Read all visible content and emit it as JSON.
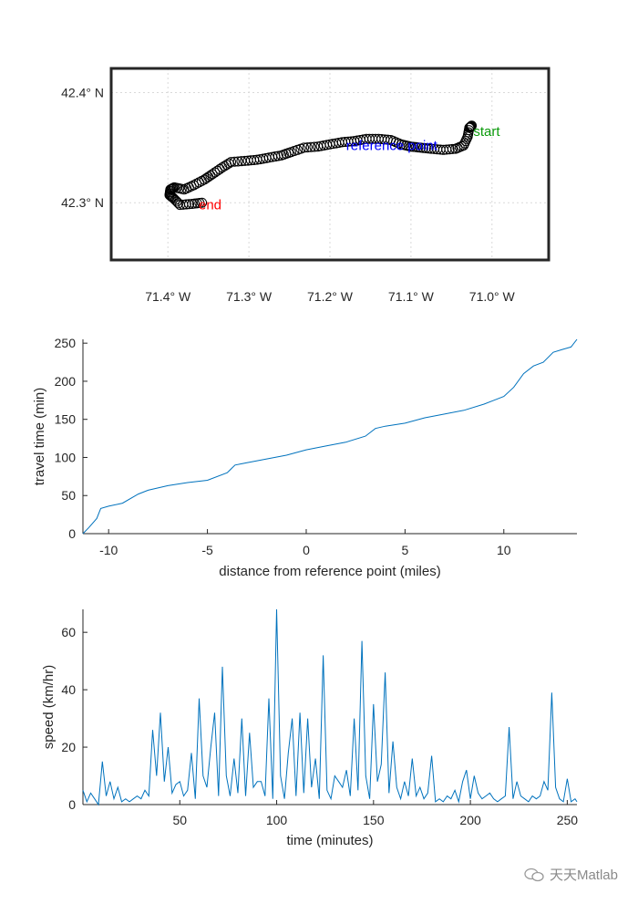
{
  "chart_data": [
    {
      "type": "scatter",
      "map": {
        "lon_ticks": [
          "71.4° W",
          "71.3° W",
          "71.2° W",
          "71.1° W",
          "71.0° W"
        ],
        "lon_tick_values": [
          -71.4,
          -71.3,
          -71.2,
          -71.1,
          -71.0
        ],
        "lat_ticks": [
          "42.4° N",
          "42.3° N"
        ],
        "lat_tick_values": [
          42.4,
          42.3
        ],
        "xlim": [
          -71.47,
          -70.93
        ],
        "ylim": [
          42.248,
          42.422
        ],
        "grid": true
      },
      "route": [
        [
          -71.358,
          42.3
        ],
        [
          -71.37,
          42.299
        ],
        [
          -71.385,
          42.298
        ],
        [
          -71.393,
          42.304
        ],
        [
          -71.398,
          42.307
        ],
        [
          -71.397,
          42.312
        ],
        [
          -71.392,
          42.314
        ],
        [
          -71.38,
          42.312
        ],
        [
          -71.368,
          42.316
        ],
        [
          -71.355,
          42.321
        ],
        [
          -71.345,
          42.326
        ],
        [
          -71.333,
          42.332
        ],
        [
          -71.322,
          42.337
        ],
        [
          -71.305,
          42.338
        ],
        [
          -71.29,
          42.339
        ],
        [
          -71.275,
          42.341
        ],
        [
          -71.26,
          42.343
        ],
        [
          -71.248,
          42.346
        ],
        [
          -71.232,
          42.35
        ],
        [
          -71.215,
          42.351
        ],
        [
          -71.2,
          42.353
        ],
        [
          -71.185,
          42.355
        ],
        [
          -71.17,
          42.356
        ],
        [
          -71.155,
          42.358
        ],
        [
          -71.14,
          42.358
        ],
        [
          -71.125,
          42.357
        ],
        [
          -71.112,
          42.353
        ],
        [
          -71.1,
          42.351
        ],
        [
          -71.088,
          42.35
        ],
        [
          -71.075,
          42.349
        ],
        [
          -71.06,
          42.348
        ],
        [
          -71.045,
          42.349
        ],
        [
          -71.035,
          42.352
        ],
        [
          -71.03,
          42.36
        ],
        [
          -71.028,
          42.368
        ],
        [
          -71.025,
          42.37
        ]
      ],
      "annotations": [
        {
          "text": "start",
          "lon": -71.023,
          "lat": 42.365,
          "color": "#0a9a0a"
        },
        {
          "text": "reference point",
          "lon": -71.18,
          "lat": 42.352,
          "color": "#0000ff"
        },
        {
          "text": "end",
          "lon": -71.362,
          "lat": 42.298,
          "color": "#ff0000"
        }
      ]
    },
    {
      "type": "line",
      "xlabel": "distance from reference point (miles)",
      "ylabel": "travel time (min)",
      "xlim": [
        -11.3,
        13.7
      ],
      "ylim": [
        0,
        255
      ],
      "xticks": [
        -10,
        -5,
        0,
        5,
        10
      ],
      "yticks": [
        0,
        50,
        100,
        150,
        200,
        250
      ],
      "x": [
        -11.3,
        -11.0,
        -10.6,
        -10.4,
        -10.0,
        -9.3,
        -8.5,
        -8.0,
        -7.0,
        -6.0,
        -5.0,
        -4.0,
        -3.6,
        -3.0,
        -2.0,
        -1.0,
        0.0,
        1.0,
        2.0,
        3.0,
        3.5,
        4.0,
        5.0,
        6.0,
        7.0,
        8.0,
        9.0,
        9.5,
        10.0,
        10.5,
        11.0,
        11.5,
        12.0,
        12.5,
        13.0,
        13.4,
        13.7
      ],
      "y": [
        0,
        8,
        20,
        33,
        36,
        40,
        52,
        57,
        63,
        67,
        70,
        80,
        90,
        93,
        98,
        103,
        110,
        115,
        120,
        128,
        138,
        141,
        145,
        152,
        157,
        162,
        170,
        175,
        180,
        192,
        210,
        220,
        225,
        238,
        242,
        245,
        255
      ]
    },
    {
      "type": "line",
      "xlabel": "time (minutes)",
      "ylabel": "speed (km/hr)",
      "xlim": [
        0,
        255
      ],
      "ylim": [
        0,
        68
      ],
      "xticks": [
        50,
        100,
        150,
        200,
        250
      ],
      "yticks": [
        0,
        20,
        40,
        60
      ],
      "x": [
        0,
        2,
        4,
        6,
        8,
        10,
        12,
        14,
        16,
        18,
        20,
        22,
        24,
        26,
        28,
        30,
        32,
        34,
        36,
        38,
        40,
        42,
        44,
        46,
        48,
        50,
        52,
        54,
        56,
        58,
        60,
        62,
        64,
        66,
        68,
        70,
        72,
        74,
        76,
        78,
        80,
        82,
        84,
        86,
        88,
        90,
        92,
        94,
        96,
        98,
        100,
        102,
        104,
        106,
        108,
        110,
        112,
        114,
        116,
        118,
        120,
        122,
        124,
        126,
        128,
        130,
        132,
        134,
        136,
        138,
        140,
        142,
        144,
        146,
        148,
        150,
        152,
        154,
        156,
        158,
        160,
        162,
        164,
        166,
        168,
        170,
        172,
        174,
        176,
        178,
        180,
        182,
        184,
        186,
        188,
        190,
        192,
        194,
        196,
        198,
        200,
        202,
        204,
        206,
        208,
        210,
        212,
        214,
        216,
        218,
        220,
        222,
        224,
        226,
        228,
        230,
        232,
        234,
        236,
        238,
        240,
        242,
        244,
        246,
        248,
        250,
        252,
        254,
        255
      ],
      "y": [
        5,
        1,
        4,
        2,
        0,
        15,
        3,
        8,
        2,
        6,
        1,
        2,
        1,
        2,
        3,
        2,
        5,
        3,
        26,
        10,
        32,
        8,
        20,
        4,
        7,
        8,
        3,
        5,
        18,
        2,
        37,
        10,
        6,
        20,
        32,
        3,
        48,
        10,
        3,
        16,
        4,
        30,
        3,
        25,
        6,
        8,
        8,
        3,
        37,
        2,
        68,
        10,
        2,
        18,
        30,
        3,
        32,
        4,
        30,
        6,
        16,
        2,
        52,
        5,
        2,
        10,
        8,
        6,
        12,
        3,
        30,
        5,
        57,
        10,
        2,
        35,
        8,
        14,
        46,
        4,
        22,
        6,
        2,
        8,
        3,
        16,
        3,
        6,
        2,
        4,
        17,
        1,
        2,
        1,
        3,
        2,
        5,
        1,
        8,
        12,
        2,
        10,
        4,
        2,
        3,
        4,
        2,
        1,
        2,
        3,
        27,
        2,
        8,
        3,
        2,
        1,
        3,
        2,
        3,
        8,
        5,
        39,
        6,
        2,
        1,
        9,
        1,
        2,
        1
      ]
    }
  ],
  "watermark": {
    "text": "天天Matlab",
    "icon": "wechat-icon"
  }
}
